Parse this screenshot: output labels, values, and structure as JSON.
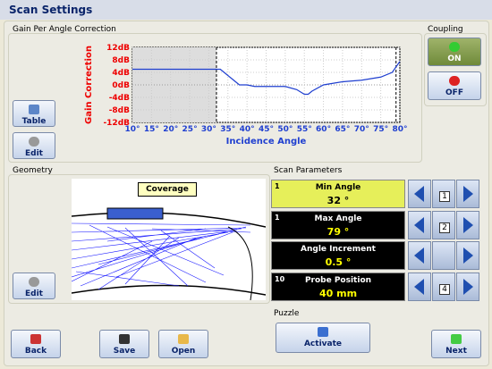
{
  "header": {
    "title": "Scan Settings"
  },
  "gain": {
    "title": "Gain Per Angle Correction",
    "table": "Table",
    "edit": "Edit",
    "chart": {
      "type": "line",
      "ylabel": "Gain Correction",
      "xlabel": "Incidence Angle",
      "xlim": [
        10,
        80
      ],
      "ylim": [
        -12,
        12
      ],
      "grid": true,
      "xticks": [
        {
          "value": 10,
          "label": "10°"
        },
        {
          "value": 15,
          "label": "15°"
        },
        {
          "value": 20,
          "label": "20°"
        },
        {
          "value": 25,
          "label": "25°"
        },
        {
          "value": 30,
          "label": "30°"
        },
        {
          "value": 35,
          "label": "35°"
        },
        {
          "value": 40,
          "label": "40°"
        },
        {
          "value": 45,
          "label": "45°"
        },
        {
          "value": 50,
          "label": "50°"
        },
        {
          "value": 55,
          "label": "55°"
        },
        {
          "value": 60,
          "label": "60°"
        },
        {
          "value": 65,
          "label": "65°"
        },
        {
          "value": 70,
          "label": "70°"
        },
        {
          "value": 75,
          "label": "75°"
        },
        {
          "value": 80,
          "label": "80°"
        }
      ],
      "yticks": [
        {
          "value": 12,
          "label": "12dB"
        },
        {
          "value": 8,
          "label": "8dB"
        },
        {
          "value": 4,
          "label": "4dB"
        },
        {
          "value": 0,
          "label": "0dB"
        },
        {
          "value": -4,
          "label": "-4dB"
        },
        {
          "value": -8,
          "label": "-8dB"
        },
        {
          "value": -12,
          "label": "-12dB"
        }
      ],
      "series": [
        {
          "color": "#1f3fd0",
          "x": [
            10,
            33,
            34,
            36,
            38,
            40,
            42,
            45,
            50,
            53,
            55,
            56,
            57,
            60,
            65,
            70,
            75,
            78,
            80
          ],
          "values": [
            5,
            5,
            4,
            2,
            0,
            0,
            -0.5,
            -0.5,
            -0.5,
            -1.5,
            -3,
            -3,
            -2,
            0,
            1,
            1.5,
            2.5,
            4,
            7.5
          ]
        }
      ]
    }
  },
  "coupling": {
    "title": "Coupling",
    "on": "ON",
    "off": "OFF"
  },
  "geometry": {
    "title": "Geometry",
    "badge": "Coverage",
    "edit": "Edit"
  },
  "scan": {
    "title": "Scan Parameters",
    "params": [
      {
        "index": "1",
        "name": "Min Angle",
        "value": {
          "value": 32,
          "label": "32 °"
        },
        "step": "1"
      },
      {
        "index": "1",
        "name": "Max Angle",
        "value": {
          "value": 79,
          "label": "79 °"
        },
        "step": "2"
      },
      {
        "name": "Angle Increment",
        "value": {
          "value": 0.5,
          "label": "0.5 °"
        }
      },
      {
        "index": "10",
        "name": "Probe Position",
        "value": {
          "value": 40,
          "label": "40 mm"
        },
        "step": "4"
      }
    ]
  },
  "puzzle": {
    "title": "Puzzle",
    "button": "Activate"
  },
  "footer": {
    "back": "Back",
    "save": "Save",
    "open": "Open",
    "next": "Next"
  }
}
